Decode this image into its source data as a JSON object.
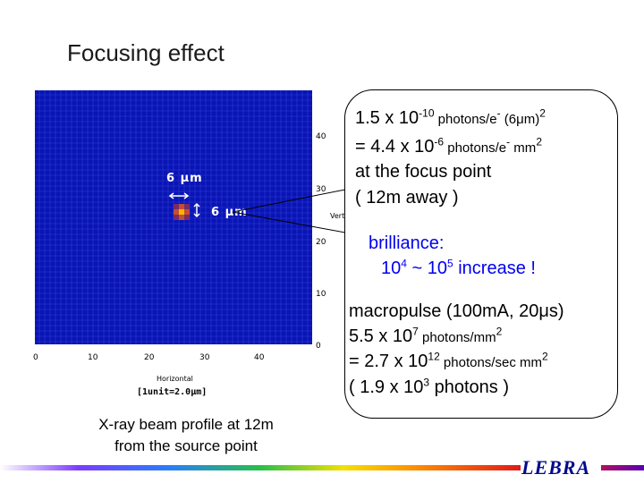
{
  "slide": {
    "title": "Focusing effect",
    "logo": "LEBRA"
  },
  "plot": {
    "x_ticks": [
      "0",
      "10",
      "20",
      "30",
      "40"
    ],
    "y_ticks": [
      "40",
      "30",
      "20",
      "10",
      "0"
    ],
    "x_label": "Horizontal",
    "y_label": "Vertical",
    "unit_label": "[1unit=2.0μm]",
    "width_label": "6 μm",
    "height_label": "6 μm",
    "colors": {
      "background": "#0a14b4",
      "grid": "#2a3fd6",
      "spot": "#ffb400"
    }
  },
  "callout": {
    "l1_a": "1.5 x 10",
    "l1_b": "-10",
    "l1_c": " photons/e",
    "l1_d": "-",
    "l1_e": " (6",
    "l1_f": "μ",
    "l1_g": "m)",
    "l1_h": "2",
    "l2_a": "= 4.4 x 10",
    "l2_b": "-6",
    "l2_c": " photons/e",
    "l2_d": "-",
    "l2_e": " mm",
    "l2_f": "2",
    "l3": "at the focus point",
    "l4": "( 12m away )",
    "brill_1": "brilliance:",
    "brill_a": "10",
    "brill_b": "4",
    "brill_c": " ~ 10",
    "brill_d": "5",
    "brill_e": "  increase !",
    "m1": "macropulse (100mA, 20μs)",
    "m2_a": "5.5 x 10",
    "m2_b": "7",
    "m2_c": "  photons/mm",
    "m2_d": "2",
    "m3_a": "= 2.7 x 10",
    "m3_b": "12",
    "m3_c": "  photons/sec mm",
    "m3_d": "2",
    "m4_a": " ( 1.9 x 10",
    "m4_b": "3",
    "m4_c": "  photons )"
  },
  "caption": {
    "line1": "X-ray beam profile at 12m",
    "line2": "from  the source point"
  }
}
